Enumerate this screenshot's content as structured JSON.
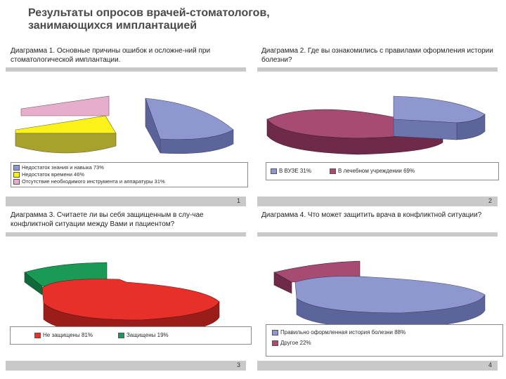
{
  "header": {
    "title": "Результаты опросов врачей-стоматологов, занимающихся имплантацией"
  },
  "colors": {
    "blue": "#8e98cf",
    "yellow": "#fbf21a",
    "pink": "#e7aecc",
    "mauve": "#a64b72",
    "red": "#e8302b",
    "green": "#1b9a56"
  },
  "chart_data": [
    {
      "type": "pie",
      "question": "Диаграмма 1. Основные причины ошибок и осложне-ний при стоматологической имплантации.",
      "panel_number": "1",
      "legend": [
        "Недостаток знания и навыка 73%",
        "Недостаток времени 46%",
        "Отсутствие необходимого инструмента и аппаратуры 31%"
      ],
      "slices": [
        {
          "label": "Недостаток знания и навыка",
          "value": 73
        },
        {
          "label": "Недостаток времени",
          "value": 46
        },
        {
          "label": "Отсутствие необходимого инструмента и аппаратуры",
          "value": 31
        }
      ]
    },
    {
      "type": "pie",
      "question": "Диаграмма 2. Где вы ознакомились с правилами оформления истории болезни?",
      "panel_number": "2",
      "legend": [
        "В ВУЗЕ 31%",
        "В лечебном учреждении 69%"
      ],
      "slices": [
        {
          "label": "В ВУЗЕ",
          "value": 31
        },
        {
          "label": "В лечебном учреждении",
          "value": 69
        }
      ]
    },
    {
      "type": "pie",
      "question": "Диаграмма 3. Считаете ли вы себя защищенным в слу-чае конфликтной ситуации между Вами и пациентом?",
      "panel_number": "3",
      "legend": [
        "Не защищены 81%",
        "Защищены 19%"
      ],
      "slices": [
        {
          "label": "Не защищены",
          "value": 81
        },
        {
          "label": "Защищены",
          "value": 19
        }
      ]
    },
    {
      "type": "pie",
      "question": "Диаграмма 4. Что может защитить врача в конфликтной ситуации?",
      "panel_number": "4",
      "legend": [
        "Правильно оформленная история болезни 88%",
        "Другое 22%"
      ],
      "slices": [
        {
          "label": "Правильно оформленная история болезни",
          "value": 88
        },
        {
          "label": "Другое",
          "value": 22
        }
      ]
    }
  ]
}
